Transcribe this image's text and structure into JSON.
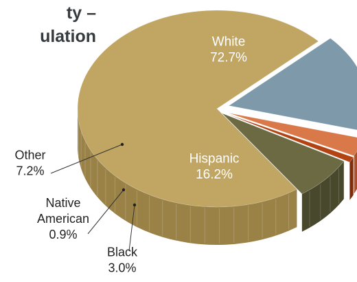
{
  "title": {
    "line1": "ty –",
    "line2": "ulation"
  },
  "chart_data": {
    "type": "pie",
    "style": "3d-exploded",
    "series": [
      {
        "name": "White",
        "value": 72.7,
        "label": "72.7%",
        "color": "#c0a563",
        "side_color": "#9a8247"
      },
      {
        "name": "Hispanic",
        "value": 16.2,
        "label": "16.2%",
        "color": "#7e9aaa",
        "side_color": "#56707f"
      },
      {
        "name": "Black",
        "value": 3.0,
        "label": "3.0%",
        "color": "#d9794a",
        "side_color": "#a4502b"
      },
      {
        "name": "Native American",
        "name_lines": [
          "Native",
          "American"
        ],
        "value": 0.9,
        "label": "0.9%",
        "color": "#b24414",
        "side_color": "#7d2d0c"
      },
      {
        "name": "Other",
        "value": 7.2,
        "label": "7.2%",
        "color": "#6b6a43",
        "side_color": "#48482d"
      }
    ]
  }
}
